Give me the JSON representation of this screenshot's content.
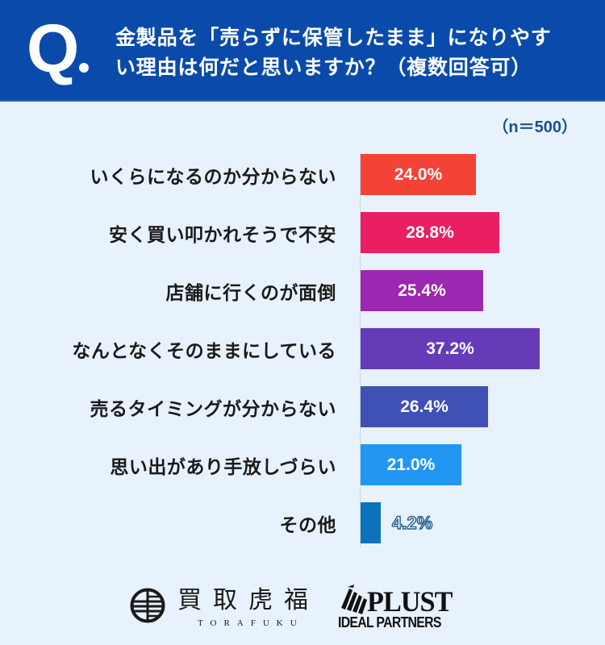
{
  "header": {
    "q_label": "Q",
    "title_lines": [
      "金製品を「売らずに保管したまま」になりやす",
      "い理由は何だと思いますか？（複数回答可）"
    ]
  },
  "sample_size": "（n＝500）",
  "colors": {
    "header_bg": "#0A4AAA",
    "page_bg": "#E8F2FD",
    "sample_text": "#1B4F8F",
    "outline_label": "#1F5E8C"
  },
  "chart_data": {
    "type": "bar",
    "orientation": "horizontal",
    "title": "金製品を「売らずに保管したまま」になりやすい理由は何だと思いますか？（複数回答可）",
    "subtitle": "（n＝500）",
    "xlabel": "",
    "ylabel": "",
    "unit": "%",
    "grid": false,
    "legend": null,
    "categories": [
      "いくらになるのか分からない",
      "安く買い叩かれそうで不安",
      "店舗に行くのが面倒",
      "なんとなくそのままにしている",
      "売るタイミングが分からない",
      "思い出があり手放しづらい",
      "その他"
    ],
    "values": [
      24.0,
      28.8,
      25.4,
      37.2,
      26.4,
      21.0,
      4.2
    ],
    "value_labels": [
      "24.0%",
      "28.8%",
      "25.4%",
      "37.2%",
      "26.4%",
      "21.0%",
      "4.2%"
    ],
    "bar_colors": [
      "#F44336",
      "#E91E63",
      "#9C27B0",
      "#673AB7",
      "#3F51B5",
      "#2196F3",
      "#0D72BA"
    ],
    "xlim": [
      0,
      40
    ]
  },
  "footer": {
    "torafuku": {
      "kanji": "買取虎福",
      "roman": "TORAFUKU",
      "icon": "torafuku-logo-icon"
    },
    "plust": {
      "word": "PLUST",
      "sub": "IDEAL PARTNERS",
      "icon": "plust-logo-icon"
    }
  }
}
